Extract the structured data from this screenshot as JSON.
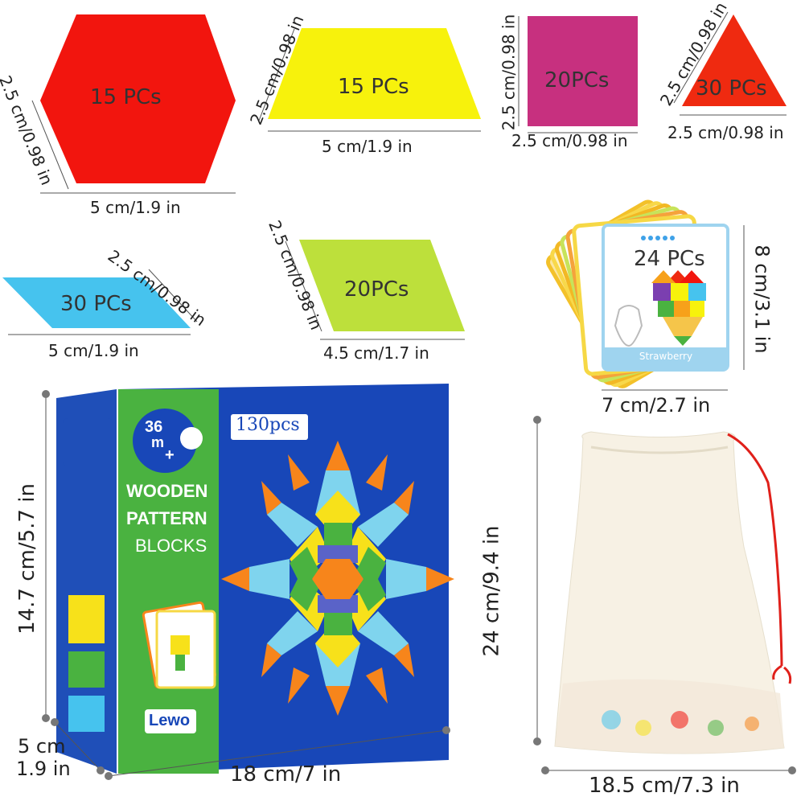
{
  "colors": {
    "hexagon": "#f2150e",
    "trapezoid": "#f7f20c",
    "square": "#c7307f",
    "triangle": "#ef2a10",
    "thin_rhombus": "#46c3ee",
    "rhombus": "#bde03b",
    "box_blue": "#1847b8",
    "box_green": "#4ab240",
    "bag": "#f7f1e4",
    "drawstring": "#e0201a"
  },
  "pieces": {
    "hexagon": {
      "count": "15 PCs",
      "side": "2.5 cm/0.98 in",
      "width": "5 cm/1.9 in"
    },
    "trapezoid": {
      "count": "15 PCs",
      "side": "2.5 cm/0.98 in",
      "width": "5 cm/1.9 in"
    },
    "square": {
      "count": "20PCs",
      "side": "2.5 cm/0.98 in",
      "width": "2.5 cm/0.98 in"
    },
    "triangle": {
      "count": "30 PCs",
      "side": "2.5 cm/0.98 in",
      "width": "2.5 cm/0.98 in"
    },
    "thin_rhombus": {
      "count": "30 PCs",
      "side": "2.5 cm/0.98 in",
      "width": "5 cm/1.9 in"
    },
    "rhombus": {
      "count": "20PCs",
      "side": "2.5 cm/0.98 in",
      "width": "4.5 cm/1.7 in"
    }
  },
  "cards": {
    "count": "24 PCs",
    "height": "8 cm/3.1 in",
    "width": "7 cm/2.7 in",
    "card_title": "Strawberry"
  },
  "box": {
    "age": "36",
    "age_unit": "m",
    "age_plus": "+",
    "pcs": "130pcs",
    "title_line1": "WOODEN",
    "title_line2": "PATTERN",
    "title_line3": "BLOCKS",
    "brand": "Lewo",
    "height": "14.7 cm/5.7 in",
    "depth_cm": "5 cm",
    "depth_in": "1.9 in",
    "width": "18 cm/7 in"
  },
  "bag": {
    "height": "24 cm/9.4 in",
    "width": "18.5 cm/7.3 in"
  }
}
